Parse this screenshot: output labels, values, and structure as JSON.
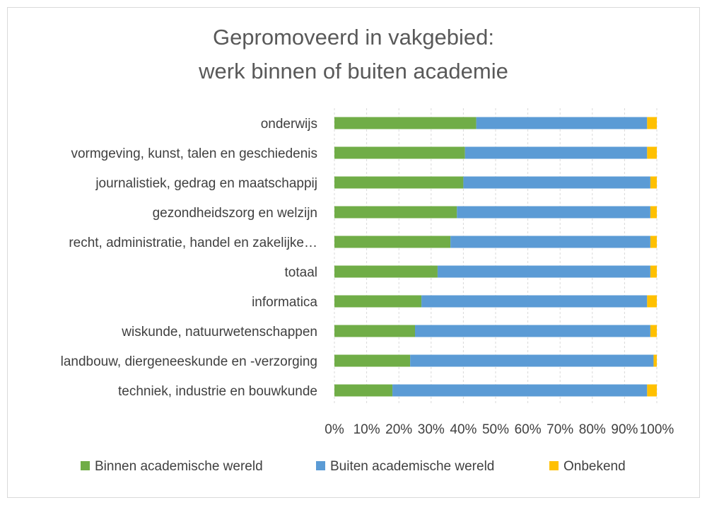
{
  "chart_data": {
    "type": "bar",
    "orientation": "horizontal",
    "stacked": "percent",
    "title_lines": [
      "Gepromoveerd in vakgebied:",
      "werk binnen of buiten academie"
    ],
    "categories": [
      "onderwijs",
      "vormgeving, kunst, talen en geschiedenis",
      "journalistiek, gedrag en maatschappij",
      "gezondheidszorg en welzijn",
      "recht, administratie, handel en zakelijke…",
      "totaal",
      "informatica",
      "wiskunde, natuurwetenschappen",
      "landbouw, diergeneeskunde en -verzorging",
      "techniek, industrie en bouwkunde"
    ],
    "series": [
      {
        "name": "Binnen academische wereld",
        "color": "#70ad47",
        "values": [
          44,
          40.5,
          40,
          38,
          36,
          32,
          27,
          25,
          23.5,
          18
        ]
      },
      {
        "name": "Buiten academische wereld",
        "color": "#5b9bd5",
        "values": [
          53,
          56.5,
          58,
          60,
          62,
          66,
          70,
          73,
          75.5,
          79
        ]
      },
      {
        "name": "Onbekend",
        "color": "#ffc000",
        "values": [
          3,
          3,
          2,
          2,
          2,
          2,
          3,
          2,
          1,
          3
        ]
      }
    ],
    "xlim": [
      0,
      100
    ],
    "x_ticks": [
      "0%",
      "10%",
      "20%",
      "30%",
      "40%",
      "50%",
      "60%",
      "70%",
      "80%",
      "90%",
      "100%"
    ],
    "grid": "vertical dashed",
    "legend_position": "bottom"
  }
}
